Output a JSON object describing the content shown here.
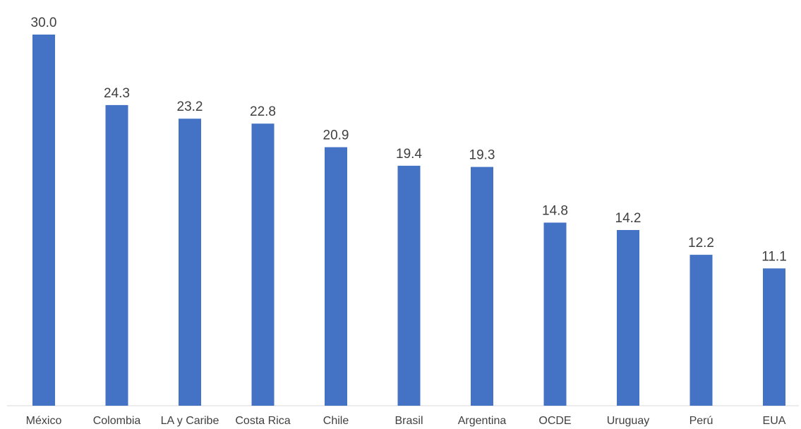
{
  "chart_data": {
    "type": "bar",
    "categories": [
      "México",
      "Colombia",
      "LA y Caribe",
      "Costa Rica",
      "Chile",
      "Brasil",
      "Argentina",
      "OCDE",
      "Uruguay",
      "Perú",
      "EUA"
    ],
    "values": [
      30.0,
      24.3,
      23.2,
      22.8,
      20.9,
      19.4,
      19.3,
      14.8,
      14.2,
      12.2,
      11.1
    ],
    "value_labels": [
      "30.0",
      "24.3",
      "23.2",
      "22.8",
      "20.9",
      "19.4",
      "19.3",
      "14.8",
      "14.2",
      "12.2",
      "11.1"
    ],
    "ylim": [
      0,
      30.0
    ],
    "grid": false,
    "legend": "none",
    "bar_color": "#4472C4"
  }
}
